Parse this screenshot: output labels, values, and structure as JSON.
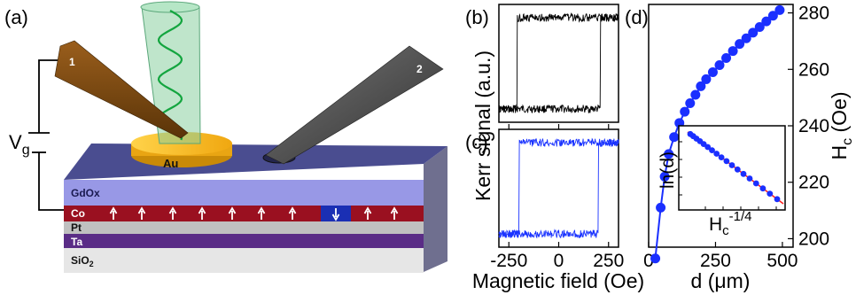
{
  "panels": {
    "a": "(a)",
    "b": "(b)",
    "c": "(c)",
    "d": "(d)"
  },
  "device": {
    "probe_1": "1",
    "probe_2": "2",
    "gate_symbol": "V",
    "gate_subscript": "g",
    "electrode": "Au",
    "layers": [
      "GdOx",
      "Co",
      "Pt",
      "Ta",
      "SiO"
    ],
    "sio_subscript": "2",
    "colors": {
      "gdox": "#9898e6",
      "co": "#9a1020",
      "pt": "#c0c0c0",
      "ta": "#5a2c86",
      "sio2": "#e6e6e6",
      "top": "#4a4d90",
      "gold": "#f3b21c",
      "reversed_domain": "#1a2fb4",
      "beam": "#8ad0a0",
      "wave": "#13a53f",
      "probe_1": "#7a4a14",
      "probe_2": "#555555"
    }
  },
  "chart_data": [
    {
      "panel": "(b)",
      "type": "line",
      "description_of_axes": "shared",
      "x_range": [
        -300,
        300
      ],
      "coercive_field": 210,
      "color": "#000000",
      "levels": [
        "low",
        "high"
      ]
    },
    {
      "panel": "(c)",
      "type": "line",
      "x_range": [
        -300,
        300
      ],
      "coercive_field": 200,
      "color": "#1a33ff",
      "levels": [
        "low",
        "high"
      ]
    },
    {
      "panel": "(d)",
      "type": "scatter",
      "x": [
        25,
        45,
        60,
        75,
        95,
        115,
        135,
        155,
        175,
        195,
        215,
        240,
        265,
        290,
        315,
        340,
        365,
        390,
        415,
        440,
        465,
        490
      ],
      "y": [
        193,
        211,
        222,
        230,
        236,
        241,
        245,
        248,
        251,
        254,
        256.5,
        259,
        261.5,
        264,
        266.5,
        269,
        271,
        273,
        275,
        277,
        279,
        281
      ],
      "xlim": [
        0,
        540
      ],
      "ylim": [
        197,
        283
      ],
      "xticks": [
        0,
        250,
        500
      ],
      "yticks": [
        200,
        220,
        240,
        260,
        280
      ],
      "color": "#1a2fff",
      "inset": {
        "type": "scatter",
        "xlabel_base": "H",
        "xlabel_sub": "c",
        "xlabel_sup": "-1/4",
        "ylabel": "ln(d)",
        "fit_color": "#ff2020",
        "points_note": "ln(d) decreasing linearly with Hc^-1/4"
      }
    }
  ],
  "axes": {
    "kerr_label": "Kerr signal (a.u.)",
    "magnetic_field_label": "Magnetic field (Oe)",
    "magnetic_ticks": [
      "-250",
      "0",
      "250"
    ],
    "d_label_base": "d (",
    "d_label_mu": "μ",
    "d_label_end": "m)",
    "d_ticks": [
      "0",
      "250",
      "500"
    ],
    "hc_label_base": "H",
    "hc_label_sub": "c",
    "hc_label_end": " (Oe)",
    "hc_ticks": [
      "200",
      "220",
      "240",
      "260",
      "280"
    ]
  }
}
